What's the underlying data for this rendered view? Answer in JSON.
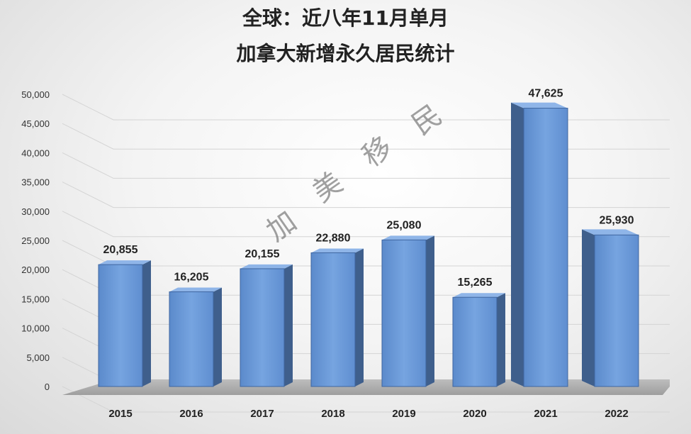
{
  "chart_data": {
    "type": "bar",
    "title": "全球：近八年11月单月",
    "subtitle": "加拿大新增永久居民统计",
    "categories": [
      "2015",
      "2016",
      "2017",
      "2018",
      "2019",
      "2020",
      "2021",
      "2022"
    ],
    "values": [
      20855,
      16205,
      20155,
      22880,
      25080,
      15265,
      47625,
      25930
    ],
    "data_labels": [
      "20,855",
      "16,205",
      "20,155",
      "22,880",
      "25,080",
      "15,265",
      "47,625",
      "25,930"
    ],
    "yticks": [
      "0",
      "5,000",
      "10,000",
      "15,000",
      "20,000",
      "25,000",
      "30,000",
      "35,000",
      "40,000",
      "45,000",
      "50,000"
    ],
    "ylim": [
      0,
      50000
    ],
    "grid": true,
    "bar_color": "#6c9bd8",
    "bar_side_color": "#3f5f8c",
    "watermark": [
      "加",
      "美",
      "移",
      "民"
    ]
  }
}
